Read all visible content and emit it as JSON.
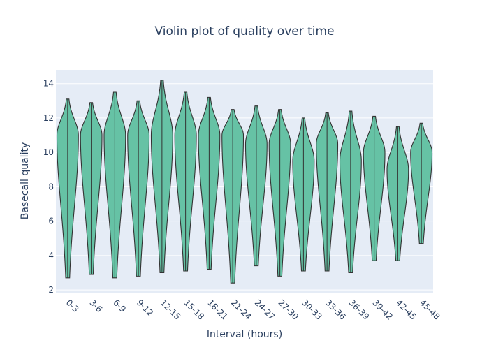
{
  "chart_data": {
    "type": "violin",
    "title": "Violin plot of quality over time",
    "xlabel": "Interval (hours)",
    "ylabel": "Basecall quality",
    "ylim": [
      1.8,
      14.8
    ],
    "y_ticks": [
      2,
      4,
      6,
      8,
      10,
      12,
      14
    ],
    "grid": true,
    "legend": "none",
    "colors": {
      "fill": "#66c2a5",
      "line": "#333333",
      "plot_bg": "#e5ecf6",
      "grid": "#ffffff",
      "text": "#2a3f5f"
    },
    "categories": [
      "0-3",
      "3-6",
      "6-9",
      "9-12",
      "12-15",
      "15-18",
      "18-21",
      "21-24",
      "24-27",
      "27-30",
      "30-33",
      "33-36",
      "36-39",
      "39-42",
      "42-45",
      "45-48"
    ],
    "violins": [
      {
        "min": 2.7,
        "max": 13.1,
        "mode": 11.0
      },
      {
        "min": 2.9,
        "max": 12.9,
        "mode": 11.0
      },
      {
        "min": 2.7,
        "max": 13.5,
        "mode": 11.0
      },
      {
        "min": 2.8,
        "max": 13.0,
        "mode": 11.0
      },
      {
        "min": 3.0,
        "max": 14.2,
        "mode": 11.0
      },
      {
        "min": 3.1,
        "max": 13.5,
        "mode": 11.0
      },
      {
        "min": 3.2,
        "max": 13.2,
        "mode": 11.0
      },
      {
        "min": 2.4,
        "max": 12.5,
        "mode": 11.0
      },
      {
        "min": 3.4,
        "max": 12.7,
        "mode": 10.5
      },
      {
        "min": 2.8,
        "max": 12.5,
        "mode": 10.5
      },
      {
        "min": 3.1,
        "max": 12.0,
        "mode": 9.5
      },
      {
        "min": 3.1,
        "max": 12.3,
        "mode": 10.5
      },
      {
        "min": 3.0,
        "max": 12.4,
        "mode": 9.5
      },
      {
        "min": 3.7,
        "max": 12.1,
        "mode": 10.0
      },
      {
        "min": 3.7,
        "max": 11.5,
        "mode": 9.0
      },
      {
        "min": 4.7,
        "max": 11.7,
        "mode": 10.0
      }
    ]
  }
}
